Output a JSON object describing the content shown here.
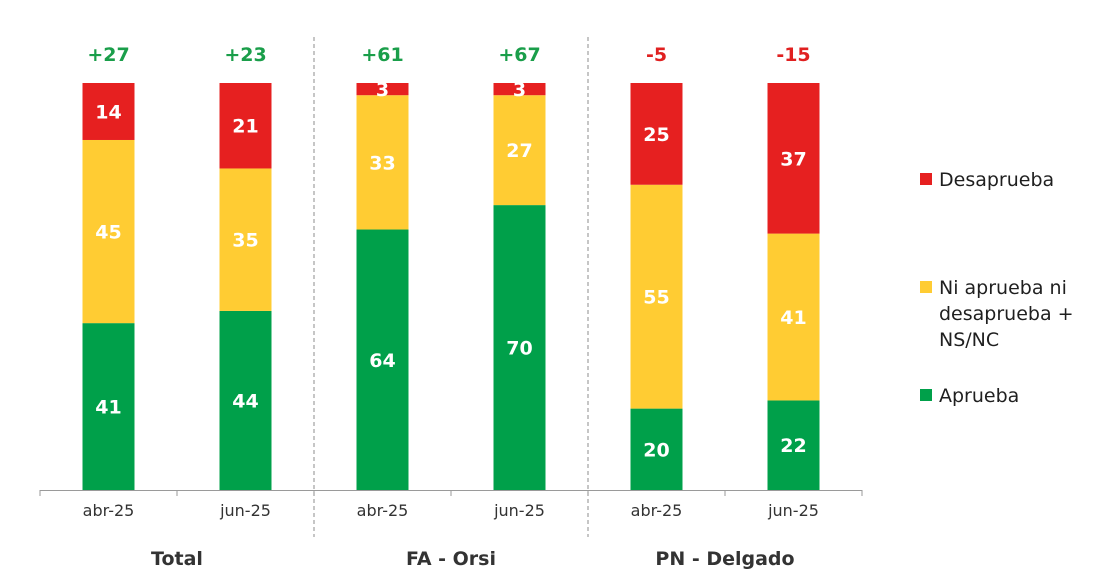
{
  "colors": {
    "aprueba": "#00A04A",
    "ni": "#FFCC33",
    "desaprueba": "#E62020",
    "positive_net": "#1A9E4A",
    "negative_net": "#E02020"
  },
  "legend": [
    {
      "key": "desaprueba",
      "label": "Desaprueba"
    },
    {
      "key": "ni",
      "label": "Ni aprueba ni\ndesaprueba +\nNS/NC"
    },
    {
      "key": "aprueba",
      "label": "Aprueba"
    }
  ],
  "chart_data": {
    "type": "bar",
    "stacked": true,
    "groups": [
      {
        "label": "Total",
        "periods": [
          "abr-25",
          "jun-25"
        ],
        "net": [
          "+27",
          "+23"
        ]
      },
      {
        "label": "FA - Orsi",
        "periods": [
          "abr-25",
          "jun-25"
        ],
        "net": [
          "+61",
          "+67"
        ]
      },
      {
        "label": "PN - Delgado",
        "periods": [
          "abr-25",
          "jun-25"
        ],
        "net": [
          "-5",
          "-15"
        ]
      }
    ],
    "series": [
      {
        "name": "Aprueba",
        "key": "aprueba",
        "values": [
          41,
          44,
          64,
          70,
          20,
          22
        ]
      },
      {
        "name": "Ni aprueba ni desaprueba + NS/NC",
        "key": "ni",
        "values": [
          45,
          35,
          33,
          27,
          55,
          41
        ]
      },
      {
        "name": "Desaprueba",
        "key": "desaprueba",
        "values": [
          14,
          21,
          3,
          3,
          25,
          37
        ]
      }
    ],
    "ylim": [
      0,
      100
    ],
    "grid": false,
    "legend_position": "right"
  }
}
